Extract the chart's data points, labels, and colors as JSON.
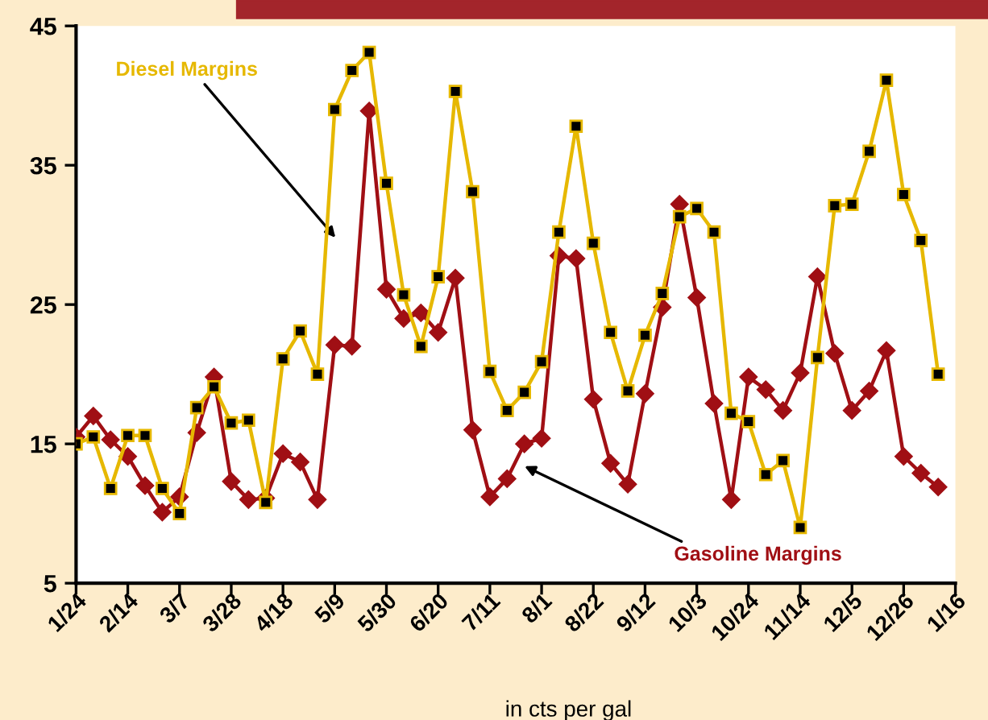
{
  "chart_data": {
    "type": "line",
    "xlabel": "in cts per gal",
    "categories": [
      "1/24",
      null,
      null,
      "2/14",
      null,
      null,
      "3/7",
      null,
      null,
      "3/28",
      null,
      null,
      "4/18",
      null,
      null,
      "5/9",
      null,
      null,
      "5/30",
      null,
      null,
      "6/20",
      null,
      null,
      "7/11",
      null,
      null,
      "8/1",
      null,
      null,
      "8/22",
      null,
      null,
      "9/12",
      null,
      null,
      "10/3",
      null,
      null,
      "10/24",
      null,
      null,
      "11/14",
      null,
      null,
      "12/5",
      null,
      null,
      "12/26",
      null,
      null,
      "1/16"
    ],
    "series": [
      {
        "name": "Diesel Margins",
        "color": "#e6b800",
        "marker": "square",
        "values": [
          15.0,
          15.5,
          11.8,
          15.6,
          15.6,
          11.8,
          10.0,
          17.6,
          19.1,
          16.5,
          16.7,
          10.8,
          21.1,
          23.1,
          20.0,
          39.0,
          41.8,
          43.1,
          33.7,
          25.7,
          22.0,
          27.0,
          40.3,
          33.1,
          20.2,
          17.4,
          18.7,
          20.9,
          30.2,
          37.8,
          29.4,
          23.0,
          18.8,
          22.8,
          25.8,
          31.3,
          31.9,
          30.2,
          17.2,
          16.6,
          12.8,
          13.8,
          9.0,
          21.2,
          32.1,
          32.2,
          36.0,
          41.1,
          32.9,
          29.6,
          20.0,
          null
        ]
      },
      {
        "name": "Gasoline Margins",
        "color": "#a00f14",
        "marker": "diamond",
        "values": [
          15.5,
          17.0,
          15.3,
          14.1,
          12.0,
          10.1,
          11.2,
          15.8,
          19.8,
          12.3,
          11.0,
          11.1,
          14.3,
          13.7,
          11.0,
          22.1,
          22.0,
          38.9,
          26.1,
          24.0,
          24.4,
          23.0,
          26.9,
          16.0,
          11.2,
          12.5,
          15.0,
          15.4,
          28.5,
          28.3,
          18.2,
          13.6,
          12.1,
          18.6,
          24.8,
          32.2,
          25.5,
          17.9,
          11.0,
          19.8,
          18.9,
          17.4,
          20.1,
          27.0,
          21.5,
          17.4,
          18.8,
          21.7,
          14.1,
          12.9,
          11.9,
          null
        ]
      }
    ],
    "ylim": [
      5,
      45
    ],
    "yticks": [
      5,
      15,
      25,
      35,
      45
    ],
    "grid": false,
    "legend": false,
    "line_style": "solid"
  }
}
